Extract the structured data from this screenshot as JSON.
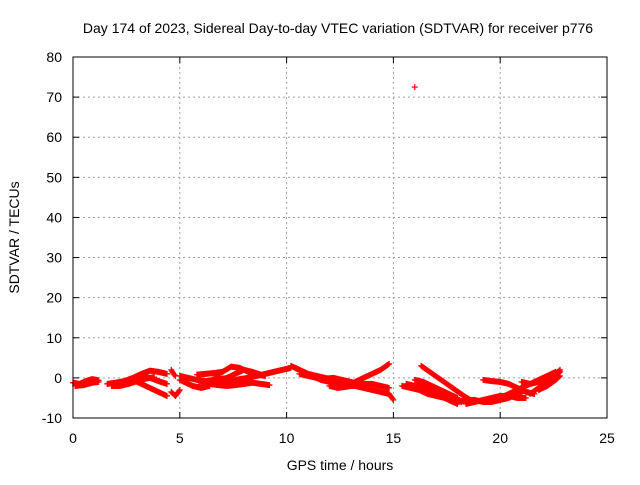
{
  "chart_data": {
    "type": "scatter",
    "title": "Day 174 of 2023, Sidereal Day-to-day VTEC variation (SDTVAR) for receiver p776",
    "xlabel": "GPS time / hours",
    "ylabel": "SDTVAR / TECUs",
    "xlim": [
      0,
      25
    ],
    "ylim": [
      -10,
      80
    ],
    "xticks": [
      0,
      5,
      10,
      15,
      20,
      25
    ],
    "yticks": [
      -10,
      0,
      10,
      20,
      30,
      40,
      50,
      60,
      70,
      80
    ],
    "grid": true,
    "marker": "+",
    "color": "#ff0000",
    "series": [
      {
        "name": "p776",
        "segments": [
          [
            [
              0.0,
              -1.2
            ],
            [
              0.3,
              -1.5
            ],
            [
              0.6,
              -0.8
            ],
            [
              0.9,
              -0.3
            ],
            [
              1.2,
              -0.6
            ]
          ],
          [
            [
              0.1,
              -2.0
            ],
            [
              0.5,
              -1.8
            ],
            [
              0.9,
              -1.2
            ],
            [
              1.2,
              -1.0
            ]
          ],
          [
            [
              1.6,
              -1.5
            ],
            [
              2.0,
              -1.2
            ],
            [
              2.4,
              -0.8
            ],
            [
              2.8,
              0.0
            ],
            [
              3.2,
              1.0
            ],
            [
              3.6,
              1.8
            ],
            [
              4.0,
              1.5
            ],
            [
              4.4,
              1.0
            ]
          ],
          [
            [
              1.8,
              -2.0
            ],
            [
              2.2,
              -2.0
            ],
            [
              2.6,
              -1.5
            ],
            [
              3.0,
              -0.8
            ],
            [
              3.4,
              -0.2
            ],
            [
              3.8,
              0.2
            ]
          ],
          [
            [
              2.6,
              -0.5
            ],
            [
              3.0,
              -1.0
            ],
            [
              3.4,
              -2.0
            ],
            [
              3.8,
              -3.0
            ],
            [
              4.2,
              -4.0
            ],
            [
              4.4,
              -4.5
            ]
          ],
          [
            [
              3.2,
              0.5
            ],
            [
              3.6,
              0.0
            ],
            [
              4.0,
              -0.8
            ],
            [
              4.4,
              -1.5
            ]
          ],
          [
            [
              4.6,
              -3.5
            ],
            [
              4.8,
              -4.5
            ],
            [
              5.0,
              -3.0
            ]
          ],
          [
            [
              4.6,
              2.0
            ],
            [
              4.7,
              1.0
            ],
            [
              4.8,
              0.5
            ]
          ],
          [
            [
              5.0,
              -0.5
            ],
            [
              5.2,
              -1.0
            ],
            [
              5.6,
              -2.0
            ],
            [
              6.0,
              -2.5
            ],
            [
              6.4,
              -2.0
            ]
          ],
          [
            [
              5.0,
              0.5
            ],
            [
              5.4,
              0.0
            ],
            [
              5.8,
              -0.5
            ],
            [
              6.2,
              -0.8
            ],
            [
              6.6,
              -0.5
            ],
            [
              7.0,
              -0.2
            ]
          ],
          [
            [
              5.8,
              0.8
            ],
            [
              6.2,
              1.0
            ],
            [
              6.6,
              1.2
            ],
            [
              7.0,
              1.5
            ]
          ],
          [
            [
              6.0,
              -1.5
            ],
            [
              6.4,
              -1.5
            ],
            [
              6.8,
              -1.8
            ],
            [
              7.2,
              -2.0
            ],
            [
              7.6,
              -1.8
            ],
            [
              8.0,
              -1.5
            ],
            [
              8.4,
              -1.2
            ],
            [
              8.8,
              -1.5
            ],
            [
              9.2,
              -1.8
            ]
          ],
          [
            [
              6.6,
              0.5
            ],
            [
              7.0,
              1.5
            ],
            [
              7.4,
              2.8
            ],
            [
              7.8,
              2.5
            ],
            [
              8.2,
              1.5
            ],
            [
              8.6,
              0.8
            ],
            [
              9.0,
              0.5
            ]
          ],
          [
            [
              6.8,
              -0.5
            ],
            [
              7.2,
              0.0
            ],
            [
              7.6,
              1.0
            ],
            [
              8.0,
              2.0
            ],
            [
              8.4,
              1.5
            ],
            [
              8.8,
              0.8
            ]
          ],
          [
            [
              7.0,
              -1.0
            ],
            [
              7.4,
              -0.8
            ],
            [
              7.8,
              -0.3
            ],
            [
              8.2,
              0.0
            ],
            [
              8.6,
              0.5
            ],
            [
              9.0,
              1.0
            ],
            [
              9.4,
              1.5
            ],
            [
              9.8,
              2.0
            ],
            [
              10.2,
              2.5
            ]
          ],
          [
            [
              10.2,
              3.0
            ],
            [
              10.6,
              2.0
            ],
            [
              11.0,
              1.0
            ],
            [
              11.4,
              0.5
            ],
            [
              11.8,
              0.0
            ],
            [
              12.2,
              -0.5
            ],
            [
              12.6,
              -1.0
            ]
          ],
          [
            [
              10.4,
              2.5
            ],
            [
              10.8,
              1.5
            ],
            [
              11.2,
              0.5
            ],
            [
              11.6,
              -0.5
            ],
            [
              12.0,
              -1.0
            ],
            [
              12.4,
              -1.5
            ],
            [
              12.8,
              -2.0
            ],
            [
              13.2,
              -2.0
            ],
            [
              13.6,
              -2.5
            ],
            [
              14.0,
              -3.0
            ],
            [
              14.4,
              -3.5
            ],
            [
              14.8,
              -4.0
            ],
            [
              15.0,
              -5.5
            ]
          ],
          [
            [
              10.6,
              1.0
            ],
            [
              11.0,
              0.5
            ],
            [
              11.4,
              0.0
            ],
            [
              11.8,
              -0.2
            ],
            [
              12.2,
              0.0
            ],
            [
              12.6,
              -0.5
            ],
            [
              13.0,
              -1.0
            ],
            [
              13.4,
              -1.5
            ],
            [
              13.8,
              -2.0
            ]
          ],
          [
            [
              12.0,
              -2.0
            ],
            [
              12.4,
              -2.5
            ],
            [
              12.8,
              -2.2
            ],
            [
              13.2,
              -1.8
            ],
            [
              13.6,
              -1.5
            ],
            [
              14.0,
              -1.5
            ],
            [
              14.4,
              -2.0
            ],
            [
              14.8,
              -2.5
            ]
          ],
          [
            [
              13.2,
              -1.0
            ],
            [
              13.6,
              0.0
            ],
            [
              14.0,
              1.0
            ],
            [
              14.4,
              2.0
            ],
            [
              14.8,
              3.5
            ]
          ],
          [
            [
              16.0,
              72.5
            ]
          ],
          [
            [
              15.4,
              -2.0
            ],
            [
              15.8,
              -2.5
            ],
            [
              16.2,
              -3.0
            ],
            [
              16.6,
              -4.0
            ],
            [
              17.0,
              -4.5
            ],
            [
              17.4,
              -5.0
            ],
            [
              17.8,
              -6.0
            ]
          ],
          [
            [
              15.6,
              -1.5
            ],
            [
              16.0,
              -2.0
            ],
            [
              16.4,
              -2.5
            ],
            [
              16.8,
              -3.5
            ],
            [
              17.2,
              -4.5
            ],
            [
              17.6,
              -5.5
            ],
            [
              18.0,
              -6.5
            ]
          ],
          [
            [
              16.0,
              -0.5
            ],
            [
              16.4,
              -1.0
            ],
            [
              16.8,
              -2.0
            ],
            [
              17.2,
              -3.0
            ],
            [
              17.6,
              -4.0
            ],
            [
              18.0,
              -5.0
            ]
          ],
          [
            [
              16.2,
              -1.5
            ],
            [
              16.6,
              -2.5
            ],
            [
              17.0,
              -3.5
            ],
            [
              17.4,
              -4.5
            ],
            [
              17.8,
              -5.5
            ],
            [
              18.2,
              -6.0
            ]
          ],
          [
            [
              16.3,
              3.0
            ],
            [
              16.7,
              1.5
            ],
            [
              17.1,
              0.0
            ],
            [
              17.5,
              -1.5
            ],
            [
              17.9,
              -3.0
            ],
            [
              18.3,
              -4.5
            ],
            [
              18.6,
              -5.5
            ]
          ],
          [
            [
              18.0,
              -6.0
            ],
            [
              18.4,
              -5.5
            ],
            [
              18.8,
              -5.5
            ],
            [
              19.2,
              -6.0
            ],
            [
              19.6,
              -6.0
            ],
            [
              20.0,
              -5.5
            ],
            [
              20.4,
              -5.0
            ],
            [
              20.8,
              -4.0
            ],
            [
              21.2,
              -3.0
            ]
          ],
          [
            [
              18.4,
              -6.5
            ],
            [
              18.8,
              -6.0
            ],
            [
              19.2,
              -5.5
            ],
            [
              19.6,
              -5.0
            ],
            [
              20.0,
              -4.5
            ],
            [
              20.4,
              -4.5
            ],
            [
              20.8,
              -5.0
            ],
            [
              21.2,
              -5.0
            ]
          ],
          [
            [
              19.2,
              -0.5
            ],
            [
              19.6,
              -0.8
            ],
            [
              20.0,
              -1.0
            ],
            [
              20.4,
              -1.5
            ],
            [
              20.8,
              -2.5
            ],
            [
              21.2,
              -3.5
            ],
            [
              21.6,
              -4.0
            ]
          ],
          [
            [
              20.2,
              -4.5
            ],
            [
              20.6,
              -3.5
            ],
            [
              21.0,
              -2.5
            ],
            [
              21.4,
              -1.5
            ],
            [
              21.8,
              -0.5
            ],
            [
              22.2,
              0.5
            ],
            [
              22.6,
              1.5
            ]
          ],
          [
            [
              21.0,
              -1.0
            ],
            [
              21.4,
              -1.5
            ],
            [
              21.8,
              -1.0
            ],
            [
              22.2,
              0.0
            ],
            [
              22.6,
              1.0
            ],
            [
              22.8,
              2.0
            ]
          ],
          [
            [
              21.4,
              -4.0
            ],
            [
              21.8,
              -2.5
            ],
            [
              22.2,
              -1.0
            ],
            [
              22.6,
              0.5
            ],
            [
              22.8,
              1.5
            ]
          ],
          [
            [
              21.8,
              -3.0
            ],
            [
              22.2,
              -2.0
            ],
            [
              22.6,
              -0.5
            ],
            [
              22.8,
              0.5
            ]
          ]
        ]
      }
    ]
  }
}
